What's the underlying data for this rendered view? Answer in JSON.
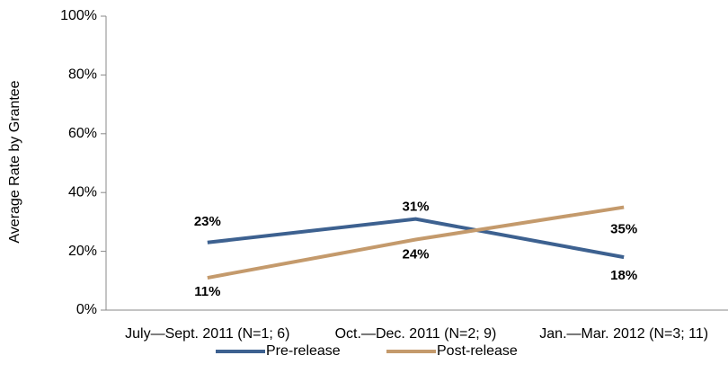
{
  "chart_data": {
    "type": "line",
    "y_label": "Average Rate by Grantee",
    "categories": [
      "July—Sept. 2011 (N=1; 6)",
      "Oct.—Dec. 2011 (N=2; 9)",
      "Jan.—Mar. 2012 (N=3; 11)"
    ],
    "series": [
      {
        "name": "Pre-release",
        "color": "#3d6190",
        "values": [
          23,
          31,
          18
        ],
        "value_labels": [
          "23%",
          "31%",
          "18%"
        ]
      },
      {
        "name": "Post-release",
        "color": "#c49a6c",
        "values": [
          11,
          24,
          35
        ],
        "value_labels": [
          "11%",
          "24%",
          "35%"
        ]
      }
    ],
    "ylim": [
      0,
      100
    ],
    "yticks": [
      {
        "value": 0,
        "label": "0%"
      },
      {
        "value": 20,
        "label": "20%"
      },
      {
        "value": 40,
        "label": "40%"
      },
      {
        "value": 60,
        "label": "60%"
      },
      {
        "value": 80,
        "label": "80%"
      },
      {
        "value": 100,
        "label": "100%"
      }
    ],
    "grid": false,
    "legend": "bottom"
  }
}
